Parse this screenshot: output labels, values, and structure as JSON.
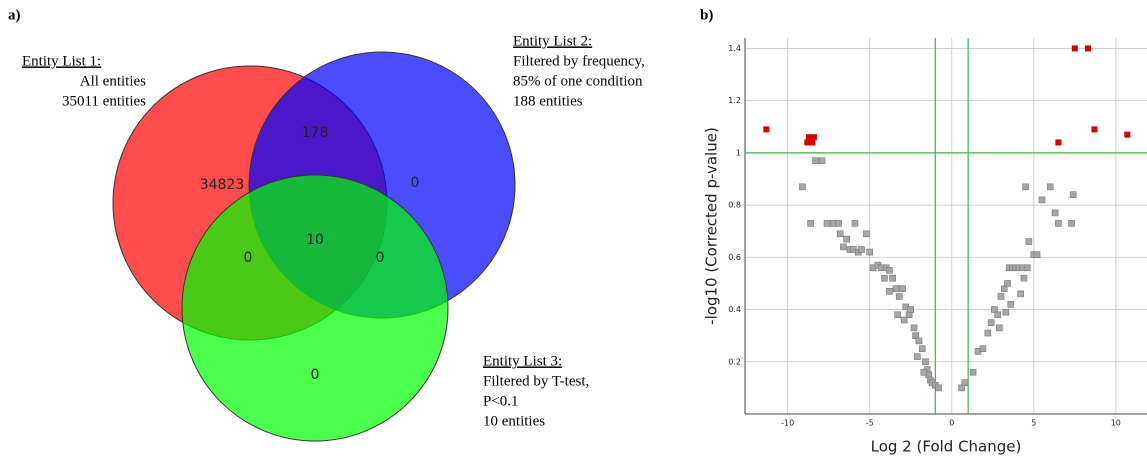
{
  "chart_data": [
    {
      "type": "venn",
      "panel_label": "a)",
      "sets": [
        {
          "name": "Entity List 1:",
          "description": [
            "All entities",
            "35011 entities"
          ],
          "color": "#ff0000"
        },
        {
          "name": "Entity List 2:",
          "description": [
            "Filtered by frequency,",
            "85% of one condition",
            "188 entities"
          ],
          "color": "#0000ff"
        },
        {
          "name": "Entity List 3:",
          "description": [
            "Filtered by T-test,",
            "P<0.1",
            "10 entities"
          ],
          "color": "#00ff00"
        }
      ],
      "regions": [
        {
          "sets": [
            0
          ],
          "value": 34823
        },
        {
          "sets": [
            0,
            1
          ],
          "value": 178
        },
        {
          "sets": [
            1
          ],
          "value": 0
        },
        {
          "sets": [
            0,
            1,
            2
          ],
          "value": 10
        },
        {
          "sets": [
            0,
            2
          ],
          "value": 0
        },
        {
          "sets": [
            1,
            2
          ],
          "value": 0
        },
        {
          "sets": [
            2
          ],
          "value": 0
        }
      ]
    },
    {
      "type": "scatter",
      "panel_label": "b)",
      "x_label": "Log 2 (Fold Change)",
      "y_label": "-log10 (Corrected p-value)",
      "xlim": [
        -12.6,
        11.9
      ],
      "ylim": [
        0,
        1.44
      ],
      "xticks": [
        -10,
        -5,
        0,
        5,
        10
      ],
      "yticks": [
        0.2,
        0.4,
        0.6,
        0.8,
        1,
        1.2,
        1.4
      ],
      "grid": true,
      "threshold_lines": {
        "x": [
          -1,
          1
        ],
        "y": [
          1
        ],
        "color": "#3cb44b"
      },
      "series": [
        {
          "color": "#a6a6a6",
          "x": [
            -9.1,
            -8.6,
            -8.3,
            -7.9,
            -7.6,
            -7.2,
            -6.9,
            -6.8,
            -6.6,
            -6.4,
            -6.2,
            -6.0,
            -5.9,
            -5.7,
            -5.5,
            -5.2,
            -5.0,
            -4.8,
            -4.5,
            -4.3,
            -4.0,
            -3.8,
            -3.6,
            -3.4,
            -3.2,
            -3.8,
            -3.0,
            -2.8,
            -2.6,
            -2.5,
            -2.3,
            -2.2,
            -2.0,
            -2.9,
            -1.8,
            -1.6,
            -1.5,
            -1.4,
            -1.3,
            -1.2,
            -1.0,
            -0.8,
            -3.3,
            -4.1,
            -2.1,
            -1.7,
            0.6,
            0.8,
            1.3,
            1.6,
            1.9,
            2.2,
            2.4,
            2.6,
            2.8,
            3.0,
            3.2,
            3.4,
            3.5,
            3.7,
            3.9,
            4.1,
            4.3,
            4.4,
            4.6,
            4.7,
            4.5,
            5.0,
            5.2,
            5.5,
            4.2,
            3.6,
            6.0,
            6.3,
            6.5,
            7.3,
            7.4,
            3.3,
            2.9
          ],
          "values": [
            0.87,
            0.73,
            0.97,
            0.97,
            0.73,
            0.73,
            0.73,
            0.69,
            0.64,
            0.67,
            0.63,
            0.63,
            0.73,
            0.62,
            0.63,
            0.69,
            0.62,
            0.56,
            0.57,
            0.56,
            0.56,
            0.55,
            0.52,
            0.48,
            0.45,
            0.47,
            0.48,
            0.41,
            0.38,
            0.4,
            0.33,
            0.3,
            0.28,
            0.36,
            0.25,
            0.2,
            0.17,
            0.15,
            0.13,
            0.12,
            0.11,
            0.1,
            0.38,
            0.52,
            0.22,
            0.16,
            0.1,
            0.12,
            0.16,
            0.24,
            0.25,
            0.31,
            0.35,
            0.4,
            0.38,
            0.45,
            0.48,
            0.5,
            0.56,
            0.56,
            0.56,
            0.56,
            0.56,
            0.52,
            0.56,
            0.66,
            0.87,
            0.61,
            0.61,
            0.82,
            0.46,
            0.42,
            0.87,
            0.77,
            0.73,
            0.73,
            0.84,
            0.39,
            0.33
          ]
        },
        {
          "color": "#d40000",
          "x": [
            -11.3,
            -8.7,
            -8.4,
            -8.8,
            -8.5,
            6.5,
            7.5,
            8.3,
            8.7,
            10.7
          ],
          "values": [
            1.09,
            1.06,
            1.06,
            1.04,
            1.04,
            1.04,
            1.4,
            1.4,
            1.09,
            1.07
          ]
        }
      ]
    }
  ]
}
